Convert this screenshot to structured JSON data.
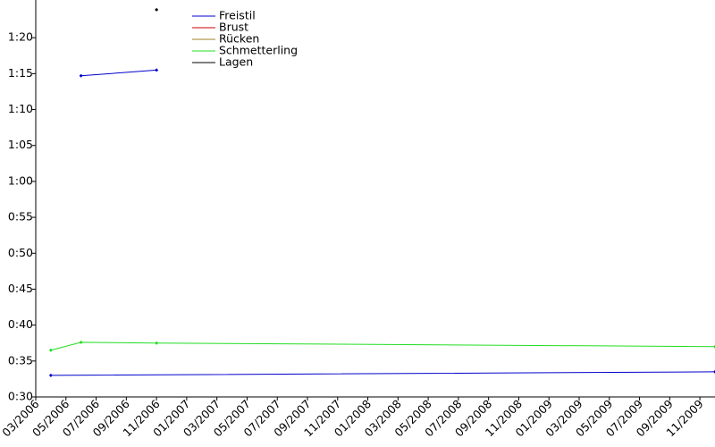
{
  "chart_data": {
    "type": "line",
    "xlim": [
      "2006-03",
      "2009-12"
    ],
    "ylim": [
      30,
      85.25
    ],
    "xticks": [
      {
        "value": "2006-03",
        "label": "03/2006"
      },
      {
        "value": "2006-05",
        "label": "05/2006"
      },
      {
        "value": "2006-07",
        "label": "07/2006"
      },
      {
        "value": "2006-09",
        "label": "09/2006"
      },
      {
        "value": "2006-11",
        "label": "11/2006"
      },
      {
        "value": "2007-01",
        "label": "01/2007"
      },
      {
        "value": "2007-03",
        "label": "03/2007"
      },
      {
        "value": "2007-05",
        "label": "05/2007"
      },
      {
        "value": "2007-07",
        "label": "07/2007"
      },
      {
        "value": "2007-09",
        "label": "09/2007"
      },
      {
        "value": "2007-11",
        "label": "11/2007"
      },
      {
        "value": "2008-01",
        "label": "01/2008"
      },
      {
        "value": "2008-03",
        "label": "03/2008"
      },
      {
        "value": "2008-05",
        "label": "05/2008"
      },
      {
        "value": "2008-07",
        "label": "07/2008"
      },
      {
        "value": "2008-09",
        "label": "09/2008"
      },
      {
        "value": "2008-11",
        "label": "11/2008"
      },
      {
        "value": "2009-01",
        "label": "01/2009"
      },
      {
        "value": "2009-03",
        "label": "03/2009"
      },
      {
        "value": "2009-05",
        "label": "05/2009"
      },
      {
        "value": "2009-07",
        "label": "07/2009"
      },
      {
        "value": "2009-09",
        "label": "09/2009"
      },
      {
        "value": "2009-11",
        "label": "11/2009"
      }
    ],
    "yticks": [
      {
        "value": 30,
        "label": "0:30"
      },
      {
        "value": 35,
        "label": "0:35"
      },
      {
        "value": 40,
        "label": "0:40"
      },
      {
        "value": 45,
        "label": "0:45"
      },
      {
        "value": 50,
        "label": "0:50"
      },
      {
        "value": 55,
        "label": "0:55"
      },
      {
        "value": 60,
        "label": "1:00"
      },
      {
        "value": 65,
        "label": "1:05"
      },
      {
        "value": 70,
        "label": "1:10"
      },
      {
        "value": 75,
        "label": "1:15"
      },
      {
        "value": 80,
        "label": "1:20"
      }
    ],
    "series": [
      {
        "name": "Freistil",
        "color": "#0000cc",
        "x": [
          "2006-04",
          "2009-12",
          null,
          "2006-06",
          "2006-11"
        ],
        "values": [
          33.0,
          33.5,
          null,
          74.7,
          75.5
        ]
      },
      {
        "name": "Brust",
        "color": "#cc0000",
        "x": [],
        "values": []
      },
      {
        "name": "Rücken",
        "color": "#a08020",
        "x": [],
        "values": []
      },
      {
        "name": "Schmetterling",
        "color": "#22dd22",
        "x": [
          "2006-04",
          "2006-06",
          "2006-11",
          "2009-12"
        ],
        "values": [
          36.5,
          37.6,
          37.5,
          37.0
        ]
      },
      {
        "name": "Lagen",
        "color": "#000000",
        "x": [
          "2006-11"
        ],
        "values": [
          83.9
        ]
      }
    ]
  }
}
